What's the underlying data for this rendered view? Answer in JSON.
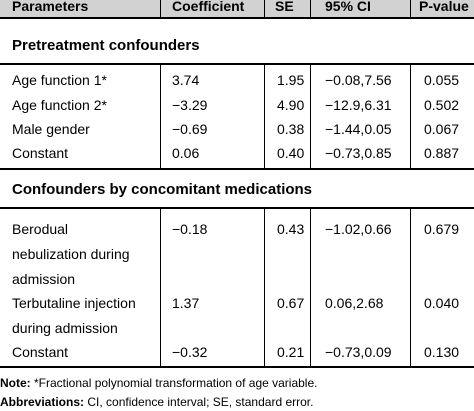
{
  "table": {
    "headers": [
      "Parameters",
      "Coefficient",
      "SE",
      "95% CI",
      "P-value"
    ],
    "sections": [
      {
        "title": "Pretreatment confounders",
        "rows": [
          {
            "param": [
              "Age function 1*"
            ],
            "coef": "3.74",
            "se": "1.95",
            "ci": "−0.08,7.56",
            "p": "0.055"
          },
          {
            "param": [
              "Age function 2*"
            ],
            "coef": "−3.29",
            "se": "4.90",
            "ci": "−12.9,6.31",
            "p": "0.502"
          },
          {
            "param": [
              "Male gender"
            ],
            "coef": "−0.69",
            "se": "0.38",
            "ci": "−1.44,0.05",
            "p": "0.067"
          },
          {
            "param": [
              "Constant"
            ],
            "coef": "0.06",
            "se": "0.40",
            "ci": "−0.73,0.85",
            "p": "0.887"
          }
        ]
      },
      {
        "title": "Confounders by concomitant medications",
        "rows": [
          {
            "param": [
              "Berodual",
              "nebulization during",
              "admission"
            ],
            "coef": "−0.18",
            "se": "0.43",
            "ci": "−1.02,0.66",
            "p": "0.679"
          },
          {
            "param": [
              "Terbutaline injection",
              "during admission"
            ],
            "coef": "1.37",
            "se": "0.67",
            "ci": "0.06,2.68",
            "p": "0.040"
          },
          {
            "param": [
              "Constant"
            ],
            "coef": "−0.32",
            "se": "0.21",
            "ci": "−0.73,0.09",
            "p": "0.130"
          }
        ]
      }
    ]
  },
  "notes": {
    "note_label": "Note:",
    "note_text": " *Fractional polynomial transformation of age variable.",
    "abbrev_label": "Abbreviations:",
    "abbrev_text": " CI, confidence interval; SE, standard error."
  }
}
